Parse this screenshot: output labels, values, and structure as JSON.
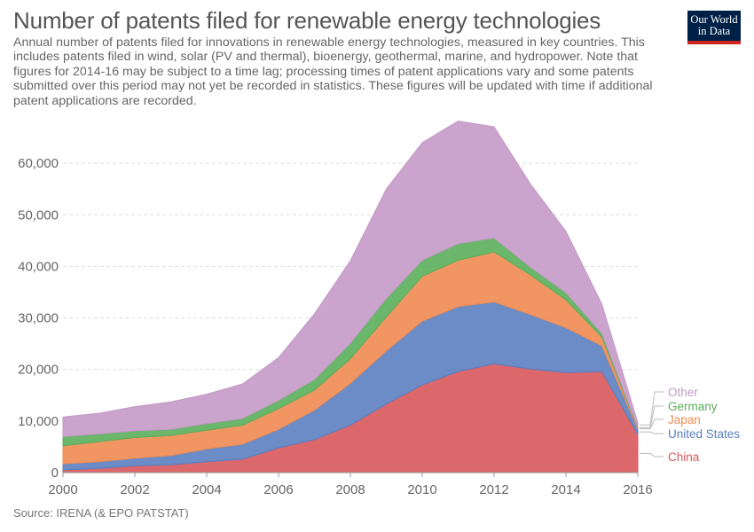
{
  "header": {
    "title": "Number of patents filed for renewable energy technologies",
    "subtitle": "Annual number of patents filed for innovations in renewable energy technologies, measured in key countries. This includes patents filed in wind, solar (PV and thermal), bioenergy, geothermal, marine, and hydropower. Note that figures for 2014-16 may be subject to a time lag; processing times of patent applications vary and some patents submitted over this period may not yet be recorded in statistics. These figures will be updated with time if additional patent applications are recorded."
  },
  "logo": {
    "line1": "Our World",
    "line2": "in Data",
    "bg_color": "#002147",
    "bar_color": "#ce261e"
  },
  "footer": {
    "source": "Source: IRENA (& EPO PATSTAT)"
  },
  "chart_data": {
    "type": "area",
    "stacked": true,
    "x": [
      2000,
      2001,
      2002,
      2003,
      2004,
      2005,
      2006,
      2007,
      2008,
      2009,
      2010,
      2011,
      2012,
      2013,
      2014,
      2015,
      2016
    ],
    "xticks": [
      2000,
      2002,
      2004,
      2006,
      2008,
      2010,
      2012,
      2014,
      2016
    ],
    "yticks": [
      0,
      10000,
      20000,
      30000,
      40000,
      50000,
      60000
    ],
    "ytick_labels": [
      "0",
      "10,000",
      "20,000",
      "30,000",
      "40,000",
      "50,000",
      "60,000"
    ],
    "xlim": [
      2000,
      2016
    ],
    "ylim": [
      0,
      70000
    ],
    "grid": "horizontal-dashed",
    "legend_position": "right",
    "series": [
      {
        "name": "China",
        "color": "#d9585b",
        "values": [
          500,
          800,
          1300,
          1500,
          2100,
          2600,
          4800,
          6400,
          9200,
          13300,
          17000,
          19600,
          21100,
          20100,
          19400,
          19600,
          7400
        ]
      },
      {
        "name": "United States",
        "color": "#5b7fc0",
        "values": [
          1200,
          1300,
          1500,
          1800,
          2500,
          2900,
          3600,
          5700,
          8100,
          10300,
          12400,
          12600,
          12000,
          10600,
          8700,
          5000,
          1000
        ]
      },
      {
        "name": "Japan",
        "color": "#f08b52",
        "values": [
          3500,
          3900,
          4000,
          3900,
          3600,
          3700,
          4000,
          3900,
          4800,
          6600,
          8700,
          9000,
          9700,
          7700,
          5400,
          1700,
          200
        ]
      },
      {
        "name": "Germany",
        "color": "#5aae5a",
        "values": [
          1800,
          1500,
          1300,
          1200,
          1300,
          1300,
          1600,
          2100,
          3000,
          3600,
          3100,
          3200,
          2700,
          1500,
          1400,
          700,
          200
        ]
      },
      {
        "name": "Other",
        "color": "#c49ac6",
        "values": [
          3800,
          4000,
          4700,
          5300,
          5700,
          6700,
          8300,
          12700,
          16000,
          21200,
          22800,
          23800,
          21600,
          16200,
          11900,
          5700,
          900
        ]
      }
    ]
  }
}
